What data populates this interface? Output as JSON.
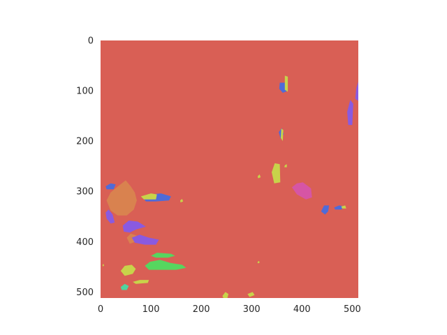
{
  "chart_data": {
    "type": "heatmap",
    "title": "",
    "xlabel": "",
    "ylabel": "",
    "xlim": [
      0,
      512
    ],
    "ylim": [
      512,
      0
    ],
    "x_ticks": [
      0,
      100,
      200,
      300,
      400,
      500
    ],
    "y_ticks": [
      0,
      100,
      200,
      300,
      400,
      500
    ],
    "grid": false,
    "background_class_color": "#d95f55",
    "segments": [
      {
        "class": "slate-blue",
        "color": "#4f6bd8",
        "points": [
          [
            366,
            84
          ],
          [
            370,
            70
          ],
          [
            372,
            100
          ],
          [
            362,
            104
          ],
          [
            355,
            96
          ],
          [
            356,
            84
          ]
        ]
      },
      {
        "class": "yellow",
        "color": "#c8d34a",
        "points": [
          [
            366,
            70
          ],
          [
            372,
            72
          ],
          [
            372,
            102
          ],
          [
            366,
            98
          ]
        ]
      },
      {
        "class": "violet",
        "color": "#8a5ae0",
        "points": [
          [
            508,
            95
          ],
          [
            512,
            82
          ],
          [
            512,
            120
          ],
          [
            506,
            116
          ]
        ]
      },
      {
        "class": "violet",
        "color": "#8a5ae0",
        "points": [
          [
            490,
            142
          ],
          [
            496,
            118
          ],
          [
            502,
            126
          ],
          [
            500,
            168
          ],
          [
            492,
            168
          ]
        ]
      },
      {
        "class": "slate-blue",
        "color": "#4f6bd8",
        "points": [
          [
            354,
            182
          ],
          [
            360,
            174
          ],
          [
            364,
            186
          ],
          [
            358,
            196
          ]
        ]
      },
      {
        "class": "yellow",
        "color": "#c8d34a",
        "points": [
          [
            359,
            175
          ],
          [
            363,
            178
          ],
          [
            362,
            200
          ],
          [
            358,
            194
          ]
        ]
      },
      {
        "class": "yellow",
        "color": "#c8d34a",
        "points": [
          [
            340,
            262
          ],
          [
            346,
            244
          ],
          [
            356,
            246
          ],
          [
            357,
            282
          ],
          [
            345,
            284
          ]
        ]
      },
      {
        "class": "yellow",
        "color": "#c8d34a",
        "points": [
          [
            366,
            248
          ],
          [
            370,
            246
          ],
          [
            370,
            252
          ],
          [
            365,
            252
          ]
        ]
      },
      {
        "class": "yellow",
        "color": "#c8d34a",
        "points": [
          [
            312,
            270
          ],
          [
            316,
            266
          ],
          [
            318,
            272
          ],
          [
            313,
            274
          ]
        ]
      },
      {
        "class": "magenta",
        "color": "#d655a5",
        "points": [
          [
            380,
            292
          ],
          [
            390,
            284
          ],
          [
            402,
            282
          ],
          [
            418,
            294
          ],
          [
            420,
            312
          ],
          [
            408,
            316
          ],
          [
            390,
            306
          ]
        ]
      },
      {
        "class": "slate-blue",
        "color": "#4f6bd8",
        "points": [
          [
            438,
            340
          ],
          [
            444,
            328
          ],
          [
            454,
            328
          ],
          [
            452,
            340
          ],
          [
            446,
            346
          ]
        ]
      },
      {
        "class": "slate-blue",
        "color": "#4f6bd8",
        "points": [
          [
            464,
            332
          ],
          [
            474,
            328
          ],
          [
            486,
            330
          ],
          [
            478,
            336
          ],
          [
            466,
            336
          ]
        ]
      },
      {
        "class": "yellow",
        "color": "#c8d34a",
        "points": [
          [
            478,
            330
          ],
          [
            486,
            328
          ],
          [
            488,
            334
          ],
          [
            480,
            334
          ]
        ]
      },
      {
        "class": "orange",
        "color": "#d9824f",
        "points": [
          [
            12,
            318
          ],
          [
            20,
            302
          ],
          [
            32,
            292
          ],
          [
            50,
            278
          ],
          [
            60,
            290
          ],
          [
            68,
            302
          ],
          [
            72,
            318
          ],
          [
            66,
            336
          ],
          [
            52,
            348
          ],
          [
            34,
            348
          ],
          [
            20,
            338
          ]
        ]
      },
      {
        "class": "slate-blue",
        "color": "#4f6bd8",
        "points": [
          [
            10,
            290
          ],
          [
            20,
            284
          ],
          [
            30,
            286
          ],
          [
            26,
            296
          ],
          [
            12,
            296
          ]
        ]
      },
      {
        "class": "violet",
        "color": "#8a5ae0",
        "points": [
          [
            10,
            342
          ],
          [
            16,
            336
          ],
          [
            24,
            346
          ],
          [
            28,
            362
          ],
          [
            20,
            364
          ],
          [
            12,
            354
          ]
        ]
      },
      {
        "class": "slate-blue",
        "color": "#4f6bd8",
        "points": [
          [
            86,
            315
          ],
          [
            100,
            306
          ],
          [
            120,
            304
          ],
          [
            140,
            310
          ],
          [
            136,
            318
          ],
          [
            110,
            320
          ],
          [
            90,
            320
          ]
        ]
      },
      {
        "class": "yellow",
        "color": "#c8d34a",
        "points": [
          [
            80,
            310
          ],
          [
            100,
            304
          ],
          [
            112,
            306
          ],
          [
            110,
            316
          ],
          [
            86,
            316
          ]
        ]
      },
      {
        "class": "yellow",
        "color": "#c8d34a",
        "points": [
          [
            158,
            318
          ],
          [
            162,
            315
          ],
          [
            164,
            320
          ],
          [
            159,
            322
          ]
        ]
      },
      {
        "class": "violet",
        "color": "#8a5ae0",
        "points": [
          [
            44,
            368
          ],
          [
            56,
            358
          ],
          [
            74,
            360
          ],
          [
            90,
            370
          ],
          [
            70,
            376
          ],
          [
            58,
            382
          ],
          [
            46,
            380
          ]
        ]
      },
      {
        "class": "orange",
        "color": "#d9824f",
        "points": [
          [
            52,
            392
          ],
          [
            60,
            384
          ],
          [
            72,
            388
          ],
          [
            70,
            400
          ],
          [
            58,
            404
          ]
        ]
      },
      {
        "class": "violet",
        "color": "#8a5ae0",
        "points": [
          [
            62,
            392
          ],
          [
            78,
            386
          ],
          [
            96,
            392
          ],
          [
            116,
            396
          ],
          [
            110,
            406
          ],
          [
            88,
            406
          ],
          [
            68,
            402
          ]
        ]
      },
      {
        "class": "green",
        "color": "#56d65f",
        "points": [
          [
            100,
            428
          ],
          [
            112,
            422
          ],
          [
            140,
            424
          ],
          [
            148,
            428
          ],
          [
            134,
            432
          ],
          [
            110,
            432
          ]
        ]
      },
      {
        "class": "green",
        "color": "#56d65f",
        "points": [
          [
            88,
            448
          ],
          [
            98,
            440
          ],
          [
            118,
            436
          ],
          [
            138,
            442
          ],
          [
            162,
            446
          ],
          [
            170,
            452
          ],
          [
            150,
            456
          ],
          [
            120,
            456
          ],
          [
            96,
            456
          ]
        ]
      },
      {
        "class": "yellow",
        "color": "#c8d34a",
        "points": [
          [
            40,
            458
          ],
          [
            48,
            448
          ],
          [
            62,
            446
          ],
          [
            70,
            454
          ],
          [
            64,
            464
          ],
          [
            48,
            468
          ]
        ]
      },
      {
        "class": "yellow",
        "color": "#c8d34a",
        "points": [
          [
            64,
            480
          ],
          [
            78,
            476
          ],
          [
            96,
            476
          ],
          [
            94,
            482
          ],
          [
            70,
            484
          ]
        ]
      },
      {
        "class": "teal",
        "color": "#4fd4a0",
        "points": [
          [
            40,
            490
          ],
          [
            48,
            484
          ],
          [
            56,
            488
          ],
          [
            52,
            496
          ],
          [
            42,
            496
          ]
        ]
      },
      {
        "class": "yellow",
        "color": "#c8d34a",
        "points": [
          [
            242,
            508
          ],
          [
            248,
            500
          ],
          [
            254,
            504
          ],
          [
            252,
            512
          ],
          [
            244,
            512
          ]
        ]
      },
      {
        "class": "yellow",
        "color": "#c8d34a",
        "points": [
          [
            292,
            504
          ],
          [
            302,
            500
          ],
          [
            306,
            506
          ],
          [
            296,
            510
          ]
        ]
      },
      {
        "class": "yellow",
        "color": "#c8d34a",
        "points": [
          [
            312,
            440
          ],
          [
            315,
            438
          ],
          [
            316,
            442
          ],
          [
            312,
            443
          ]
        ]
      },
      {
        "class": "yellow",
        "color": "#c8d34a",
        "points": [
          [
            4,
            446
          ],
          [
            6,
            444
          ],
          [
            7,
            448
          ],
          [
            4,
            449
          ]
        ]
      }
    ]
  }
}
